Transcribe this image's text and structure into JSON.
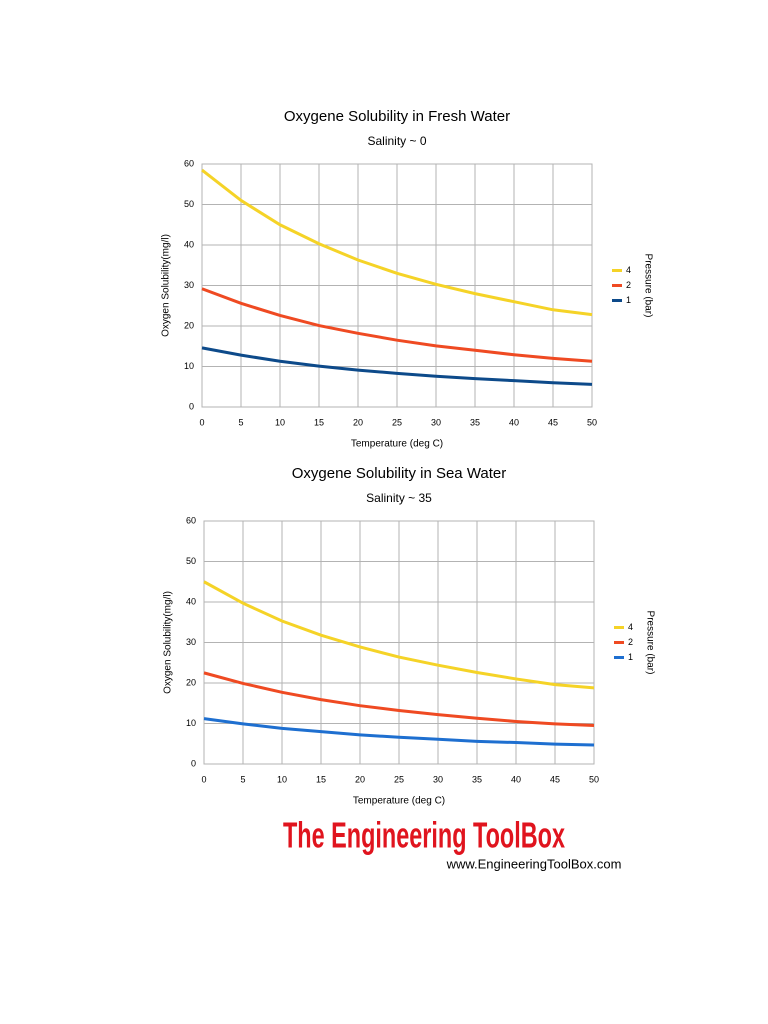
{
  "chart_data": [
    {
      "type": "line",
      "title": "Oxygene Solubility in Fresh Water",
      "subtitle": "Salinity ~ 0",
      "x_label": "Temperature (deg C)",
      "y_label": "Oxygen Solubility(mg/l)",
      "legend_title": "Pressure (bar)",
      "x": [
        0,
        5,
        10,
        15,
        20,
        25,
        30,
        35,
        40,
        45,
        50
      ],
      "series": [
        {
          "name": "4",
          "color": "#f5d327",
          "values": [
            58.5,
            51,
            45,
            40.3,
            36.3,
            33,
            30.3,
            28,
            26,
            24,
            22.8
          ]
        },
        {
          "name": "2",
          "color": "#ef4a22",
          "values": [
            29.2,
            25.6,
            22.6,
            20.1,
            18.2,
            16.5,
            15.1,
            14,
            12.9,
            12,
            11.3
          ]
        },
        {
          "name": "1",
          "color": "#0d4a8a",
          "values": [
            14.6,
            12.8,
            11.3,
            10.1,
            9.1,
            8.3,
            7.6,
            7,
            6.5,
            6,
            5.6
          ]
        }
      ],
      "xlim": [
        0,
        50
      ],
      "xticks": [
        0,
        5,
        10,
        15,
        20,
        25,
        30,
        35,
        40,
        45,
        50
      ],
      "ylim": [
        0,
        60
      ],
      "yticks": [
        0,
        10,
        20,
        30,
        40,
        50,
        60
      ],
      "grid": true,
      "legend": "right"
    },
    {
      "type": "line",
      "title": "Oxygene Solubility in Sea Water",
      "subtitle": "Salinity ~ 35",
      "x_label": "Temperature (deg C)",
      "y_label": "Oxygen Solubility(mg/l)",
      "legend_title": "Pressure (bar)",
      "x": [
        0,
        5,
        10,
        15,
        20,
        25,
        30,
        35,
        40,
        45,
        50
      ],
      "series": [
        {
          "name": "4",
          "color": "#f5d327",
          "values": [
            45,
            39.7,
            35.3,
            31.8,
            28.9,
            26.4,
            24.4,
            22.6,
            21,
            19.6,
            18.8
          ]
        },
        {
          "name": "2",
          "color": "#ef4a22",
          "values": [
            22.5,
            19.9,
            17.7,
            15.9,
            14.4,
            13.2,
            12.2,
            11.3,
            10.5,
            9.9,
            9.5
          ]
        },
        {
          "name": "1",
          "color": "#1e6fd0",
          "values": [
            11.2,
            9.9,
            8.8,
            8,
            7.2,
            6.6,
            6.1,
            5.6,
            5.3,
            4.9,
            4.7
          ]
        }
      ],
      "xlim": [
        0,
        50
      ],
      "xticks": [
        0,
        5,
        10,
        15,
        20,
        25,
        30,
        35,
        40,
        45,
        50
      ],
      "ylim": [
        0,
        60
      ],
      "yticks": [
        0,
        10,
        20,
        30,
        40,
        50,
        60
      ],
      "grid": true,
      "legend": "right"
    }
  ],
  "footer": {
    "logo": "The Engineering ToolBox",
    "url": "www.EngineeringToolBox.com"
  }
}
